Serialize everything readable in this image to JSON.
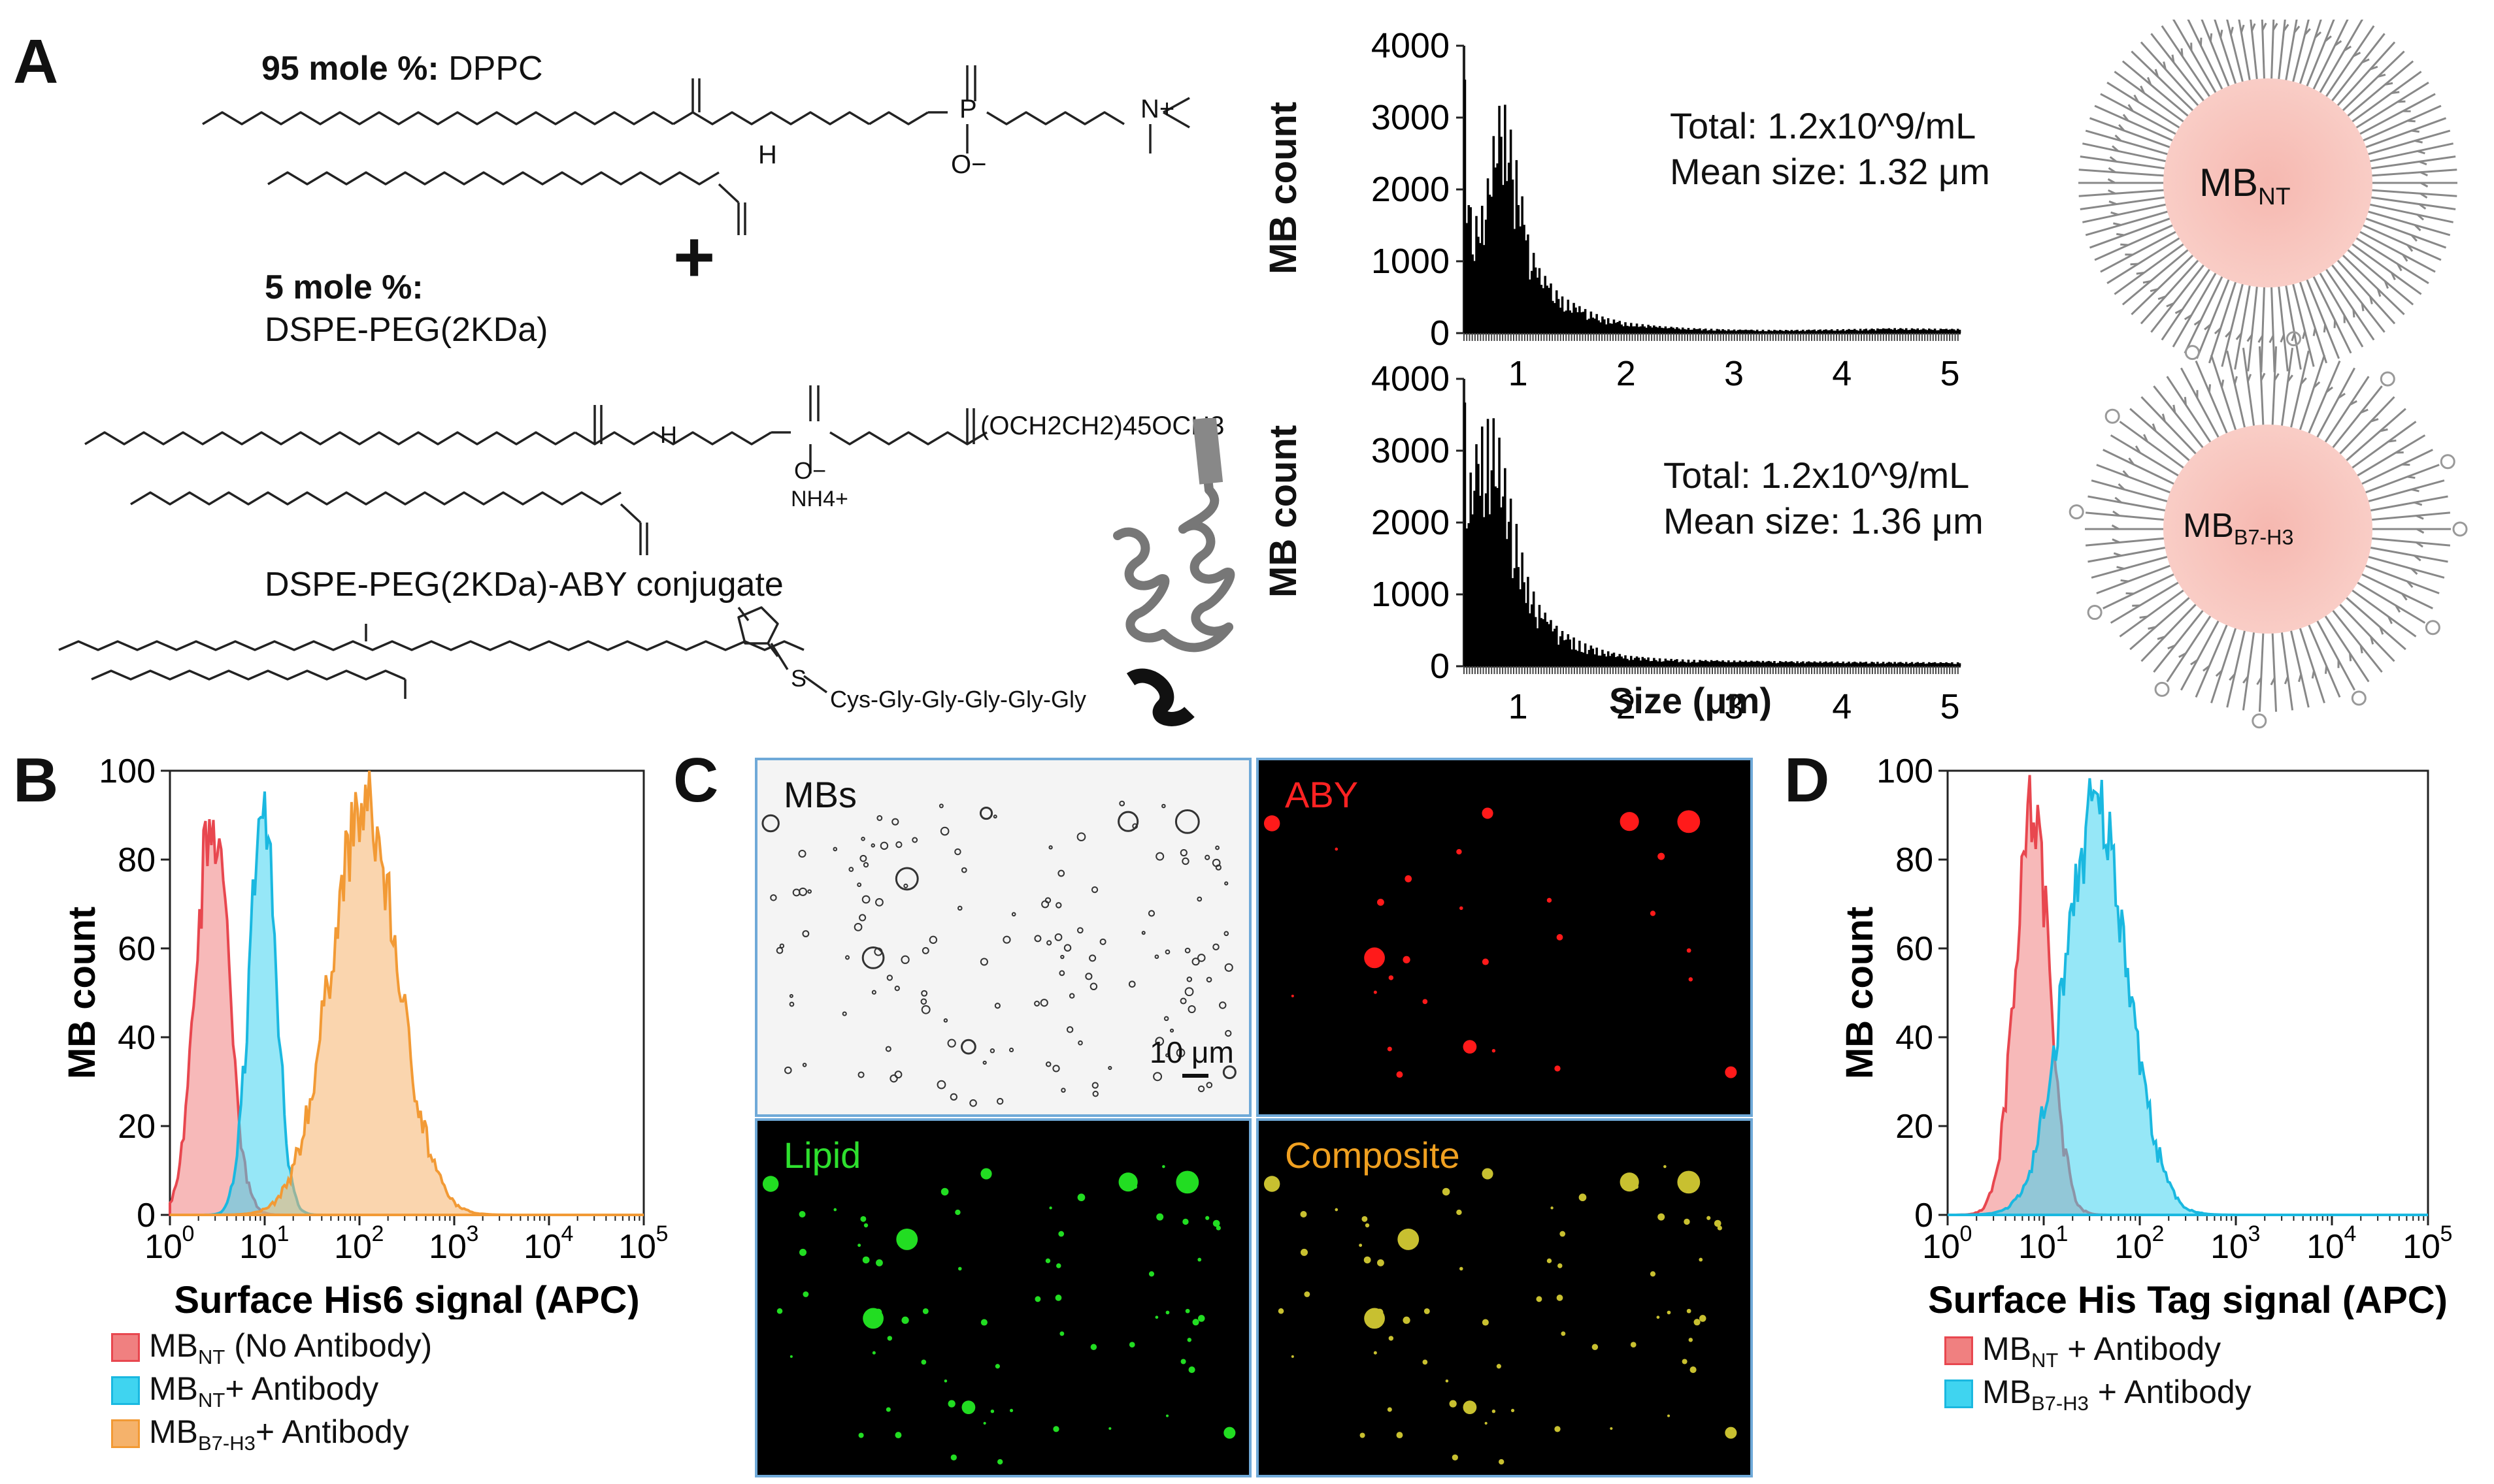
{
  "panels": {
    "A": "A",
    "B": "B",
    "C": "C",
    "D": "D"
  },
  "panelA": {
    "dppc_prefix": "95 mole %:",
    "dppc_name": " DPPC",
    "plus": "+",
    "peg_prefix": "5 mole %:",
    "peg_name": "DSPE-PEG(2KDa)",
    "peg_chain_label": "(OCH2CH2)45OCH3",
    "nh4_label": "NH4+",
    "conj_name": "DSPE-PEG(2KDa)-ABY conjugate",
    "linker_label": "Cys-Gly-Gly-Gly-Gly-Gly",
    "h_label": "H",
    "o_minus": "O−",
    "p_label": "P",
    "n_plus": "N+",
    "s_label": "S",
    "ylabel": "MB count",
    "xlabel": "Size (μm)",
    "hist1": {
      "total": "Total: 1.2x10^9/mL",
      "mean": "Mean size: 1.32 μm"
    },
    "hist2": {
      "total": "Total: 1.2x10^9/mL",
      "mean": "Mean size: 1.36 μm"
    },
    "bubble1": {
      "main": "MB",
      "sub": "NT"
    },
    "bubble2": {
      "main": "MB",
      "sub": "B7-H3"
    }
  },
  "panelB": {
    "legend": [
      {
        "main": "MB",
        "sub": "NT",
        "rest": " (No Antibody)",
        "color": "#f08080"
      },
      {
        "main": "MB",
        "sub": "NT",
        "rest": "+ Antibody",
        "color": "#3fd4f0"
      },
      {
        "main": "MB",
        "sub": "B7-H3",
        "rest": "+ Antibody",
        "color": "#f5b26b"
      }
    ]
  },
  "panelC": {
    "labels": {
      "mbs": "MBs",
      "aby": "ABY",
      "lipid": "Lipid",
      "composite": "Composite"
    },
    "scalebar": "10 μm"
  },
  "panelD": {
    "legend": [
      {
        "main": "MB",
        "sub": "NT",
        "rest": " + Antibody",
        "color": "#f08080"
      },
      {
        "main": "MB",
        "sub": "B7-H3",
        "rest": " + Antibody",
        "color": "#3fd4f0"
      }
    ]
  },
  "chart_data": [
    {
      "type": "bar",
      "id": "size-hist-NT",
      "xlabel": "",
      "ylabel": "MB count",
      "x_ticks": [
        1,
        2,
        3,
        4,
        5
      ],
      "y_ticks": [
        0,
        1000,
        2000,
        3000,
        4000
      ],
      "ylim": [
        0,
        4000
      ],
      "xlim": [
        0.5,
        5.1
      ],
      "profile": [
        [
          0.5,
          3900
        ],
        [
          0.55,
          1800
        ],
        [
          0.6,
          1600
        ],
        [
          0.65,
          1700
        ],
        [
          0.7,
          1900
        ],
        [
          0.75,
          2500
        ],
        [
          0.8,
          3000
        ],
        [
          0.85,
          3300
        ],
        [
          0.9,
          3100
        ],
        [
          0.95,
          2700
        ],
        [
          1.0,
          2300
        ],
        [
          1.05,
          1800
        ],
        [
          1.1,
          1300
        ],
        [
          1.2,
          900
        ],
        [
          1.3,
          700
        ],
        [
          1.4,
          520
        ],
        [
          1.6,
          350
        ],
        [
          1.8,
          220
        ],
        [
          2.0,
          150
        ],
        [
          2.3,
          100
        ],
        [
          2.6,
          70
        ],
        [
          3.0,
          50
        ],
        [
          3.5,
          45
        ],
        [
          4.0,
          55
        ],
        [
          4.5,
          70
        ],
        [
          5.0,
          60
        ]
      ]
    },
    {
      "type": "bar",
      "id": "size-hist-B7H3",
      "xlabel": "Size (μm)",
      "ylabel": "MB count",
      "x_ticks": [
        1,
        2,
        3,
        4,
        5
      ],
      "y_ticks": [
        0,
        1000,
        2000,
        3000,
        4000
      ],
      "ylim": [
        0,
        4000
      ],
      "xlim": [
        0.5,
        5.1
      ],
      "profile": [
        [
          0.5,
          3900
        ],
        [
          0.55,
          2600
        ],
        [
          0.6,
          3000
        ],
        [
          0.65,
          3300
        ],
        [
          0.7,
          3400
        ],
        [
          0.75,
          3500
        ],
        [
          0.8,
          3400
        ],
        [
          0.85,
          3000
        ],
        [
          0.9,
          2600
        ],
        [
          0.95,
          2200
        ],
        [
          1.0,
          1900
        ],
        [
          1.05,
          1500
        ],
        [
          1.1,
          1200
        ],
        [
          1.2,
          850
        ],
        [
          1.3,
          650
        ],
        [
          1.4,
          500
        ],
        [
          1.6,
          330
        ],
        [
          1.8,
          220
        ],
        [
          2.0,
          150
        ],
        [
          2.3,
          110
        ],
        [
          2.6,
          90
        ],
        [
          3.0,
          80
        ],
        [
          3.5,
          70
        ],
        [
          4.0,
          65
        ],
        [
          4.5,
          60
        ],
        [
          5.0,
          55
        ]
      ]
    },
    {
      "type": "area",
      "id": "flow-B",
      "xlabel": "Surface His6 signal (APC)",
      "ylabel": "MB count",
      "x_scale": "log",
      "xlim_exp": [
        0,
        5
      ],
      "ylim": [
        0,
        100
      ],
      "y_ticks": [
        0,
        20,
        40,
        60,
        80,
        100
      ],
      "series": [
        {
          "name": "MB_NT (No Antibody)",
          "color": "#f08080",
          "stroke": "#e8474f",
          "center_log": 0.45,
          "sigma": 0.17
        },
        {
          "name": "MB_NT+ Antibody",
          "color": "#3fd4f0",
          "stroke": "#1ab8e0",
          "center_log": 0.98,
          "sigma": 0.14
        },
        {
          "name": "MB_B7-H3+ Antibody",
          "color": "#f5b26b",
          "stroke": "#f29a35",
          "center_log": 2.05,
          "sigma": 0.36
        }
      ]
    },
    {
      "type": "area",
      "id": "flow-D",
      "xlabel": "Surface His Tag signal (APC)",
      "ylabel": "MB count",
      "x_scale": "log",
      "xlim_exp": [
        0,
        5
      ],
      "ylim": [
        0,
        100
      ],
      "y_ticks": [
        0,
        20,
        40,
        60,
        80,
        100
      ],
      "series": [
        {
          "name": "MB_NT + Antibody",
          "color": "#f08080",
          "stroke": "#e8474f",
          "center_log": 0.88,
          "sigma": 0.18
        },
        {
          "name": "MB_B7-H3 + Antibody",
          "color": "#3fd4f0",
          "stroke": "#1ab8e0",
          "center_log": 1.55,
          "sigma": 0.33
        }
      ]
    }
  ]
}
